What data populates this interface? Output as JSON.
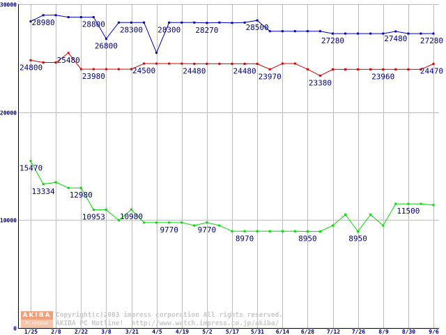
{
  "chart_data": {
    "type": "line",
    "title": "",
    "xlabel": "",
    "ylabel": "",
    "ylim": [
      0,
      30000
    ],
    "y_ticks": [
      "0",
      "10000",
      "20000",
      "30000"
    ],
    "x_tick_labels": [
      "1/25",
      "2/8",
      "2/22",
      "3/8",
      "3/21",
      "4/5",
      "4/19",
      "5/2",
      "5/17",
      "5/31",
      "6/14",
      "6/28",
      "7/12",
      "7/26",
      "8/9",
      "8/30",
      "9/6"
    ],
    "grid": true,
    "series": [
      {
        "color": "#0000cc",
        "values": [
          28400,
          28980,
          28980,
          28800,
          28800,
          28800,
          26800,
          28300,
          28300,
          28300,
          25500,
          28300,
          28300,
          28300,
          28270,
          28300,
          28270,
          28300,
          28500,
          27500,
          27500,
          27500,
          27500,
          27500,
          27280,
          27280,
          27280,
          27280,
          27280,
          27480,
          27280,
          27280,
          27280
        ],
        "labels": [
          {
            "i": 1,
            "text": "28980"
          },
          {
            "i": 5,
            "text": "28800"
          },
          {
            "i": 6,
            "text": "26800"
          },
          {
            "i": 8,
            "text": "28300"
          },
          {
            "i": 11,
            "text": "28300"
          },
          {
            "i": 14,
            "text": "28270"
          },
          {
            "i": 18,
            "text": "28500"
          },
          {
            "i": 24,
            "text": "27280"
          },
          {
            "i": 29,
            "text": "27480"
          },
          {
            "i": 32,
            "text": "27280"
          }
        ]
      },
      {
        "color": "#dd0000",
        "values": [
          24800,
          24600,
          24600,
          25480,
          23980,
          23980,
          23980,
          23980,
          23980,
          24500,
          24500,
          24500,
          24500,
          24480,
          24480,
          24480,
          24480,
          24480,
          24480,
          23970,
          24500,
          24500,
          23970,
          23380,
          23960,
          23960,
          23960,
          23960,
          23960,
          23960,
          23960,
          23960,
          24470
        ],
        "labels": [
          {
            "i": 0,
            "text": "24800"
          },
          {
            "i": 3,
            "text": "25480"
          },
          {
            "i": 5,
            "text": "23980"
          },
          {
            "i": 9,
            "text": "24500"
          },
          {
            "i": 13,
            "text": "24480"
          },
          {
            "i": 17,
            "text": "24480"
          },
          {
            "i": 19,
            "text": "23970"
          },
          {
            "i": 23,
            "text": "23380"
          },
          {
            "i": 28,
            "text": "23960"
          },
          {
            "i": 32,
            "text": "24470"
          }
        ]
      },
      {
        "color": "#00dd00",
        "values": [
          15470,
          13334,
          13500,
          12980,
          12980,
          10953,
          10953,
          9980,
          10980,
          9770,
          9770,
          9770,
          9770,
          9500,
          9770,
          9500,
          8970,
          8970,
          8970,
          8970,
          8970,
          8970,
          8950,
          8950,
          9500,
          10500,
          8950,
          10500,
          9500,
          11500,
          11500,
          11500,
          11400
        ],
        "labels": [
          {
            "i": 0,
            "text": "15470"
          },
          {
            "i": 1,
            "text": "13334"
          },
          {
            "i": 4,
            "text": "12980"
          },
          {
            "i": 5,
            "text": "10953"
          },
          {
            "i": 8,
            "text": "10980"
          },
          {
            "i": 11,
            "text": "9770"
          },
          {
            "i": 14,
            "text": "9770"
          },
          {
            "i": 17,
            "text": "8970"
          },
          {
            "i": 22,
            "text": "8950"
          },
          {
            "i": 26,
            "text": "8950"
          },
          {
            "i": 30,
            "text": "11500"
          }
        ]
      }
    ]
  },
  "logo": {
    "line1": "AKIBA",
    "line2": "PC Hotline!"
  },
  "copyright": {
    "line1": "Copyright(c)2003 impress corporation All rights reserved.",
    "line2": "AKIBA PC Hotline!  http://www.watch.impress.co.jp/akiba/"
  }
}
